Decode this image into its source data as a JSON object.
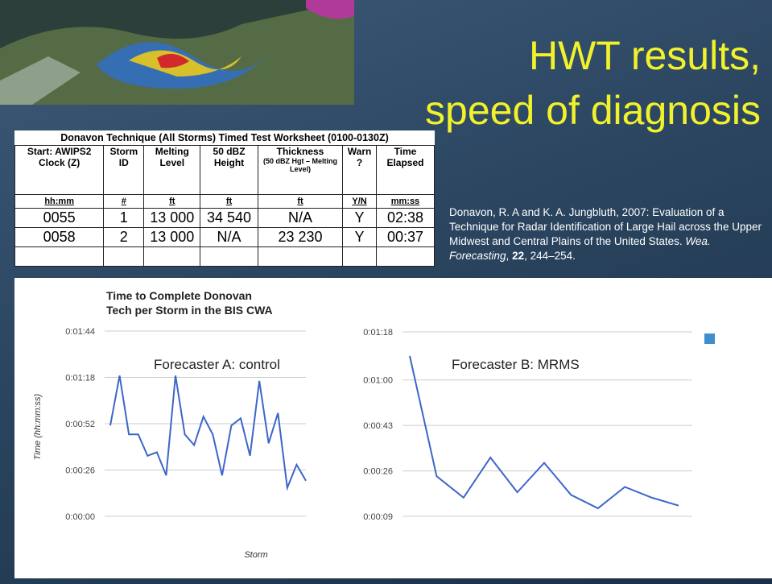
{
  "title": [
    "HWT results,",
    "speed of diagnosis"
  ],
  "table": {
    "title": "Donavon Technique (All Storms) Timed Test Worksheet (0100-0130Z)",
    "columns": [
      {
        "label": "Start: AWIPS2 Clock (Z)",
        "unit": "hh:mm"
      },
      {
        "label": "Storm ID",
        "unit": "#"
      },
      {
        "label": "Melting Level",
        "unit": "ft"
      },
      {
        "label": "50 dBZ Height",
        "unit": "ft"
      },
      {
        "label": "Thickness",
        "note": "(50 dBZ Hgt – Melting Level)",
        "unit": "ft"
      },
      {
        "label": "Warn ?",
        "unit": "Y/N"
      },
      {
        "label": "Time Elapsed",
        "unit": "mm:ss"
      }
    ],
    "rows": [
      [
        "0055",
        "1",
        "13 000",
        "34 540",
        "N/A",
        "Y",
        "02:38"
      ],
      [
        "0058",
        "2",
        "13 000",
        "N/A",
        "23 230",
        "Y",
        "00:37"
      ]
    ]
  },
  "citation": [
    {
      "text": "Donavon, R. A and K.  A. Jungbluth, 2007: Evaluation of a Technique for Radar Identification of Large Hail across the Upper Midwest and Central Plains of the United States. ",
      "style": "normal"
    },
    {
      "text": "Wea. Forecasting",
      "style": "italic"
    },
    {
      "text": ", ",
      "style": "normal"
    },
    {
      "text": "22",
      "style": "bold"
    },
    {
      "text": ", 244–254.",
      "style": "normal"
    }
  ],
  "chart_data": [
    {
      "type": "line",
      "title": "Time to Complete Donovan Tech per Storm in the BIS CWA",
      "ylabel": "Time (hh:mm:ss)",
      "xlabel": "Storm",
      "annotation": "Forecaster A:  control",
      "categories": [
        null,
        null,
        null,
        null,
        null,
        null,
        null,
        null,
        null,
        null,
        null,
        null,
        null,
        null,
        null,
        null,
        null,
        null,
        null,
        null,
        null,
        null
      ],
      "series": [
        {
          "color": "#3d66c8",
          "values": [
            51,
            79,
            46,
            46,
            34,
            36,
            23,
            79,
            46,
            40,
            56,
            46,
            23,
            51,
            55,
            34,
            76,
            41,
            58,
            16,
            29,
            20
          ]
        }
      ],
      "ylim": [
        0,
        104
      ],
      "yticks": [
        {
          "value": 0,
          "label": "0:00:00"
        },
        {
          "value": 26,
          "label": "0:00:26"
        },
        {
          "value": 52,
          "label": "0:00:52"
        },
        {
          "value": 78,
          "label": "0:01:18"
        },
        {
          "value": 104,
          "label": "0:01:44"
        }
      ],
      "grid": true
    },
    {
      "type": "line",
      "annotation": "Forecaster B:  MRMS",
      "categories": [
        null,
        null,
        null,
        null,
        null,
        null,
        null,
        null,
        null,
        null,
        null
      ],
      "series": [
        {
          "color": "#3d66c8",
          "values": [
            69,
            24,
            16,
            31,
            18,
            29,
            17,
            12,
            20,
            16,
            13
          ]
        }
      ],
      "ylim": [
        9,
        78
      ],
      "yticks": [
        {
          "value": 9,
          "label": "0:00:09"
        },
        {
          "value": 26,
          "label": "0:00:26"
        },
        {
          "value": 43,
          "label": "0:00:43"
        },
        {
          "value": 60,
          "label": "0:01:00"
        },
        {
          "value": 78,
          "label": "0:01:18"
        }
      ],
      "grid": true
    }
  ]
}
